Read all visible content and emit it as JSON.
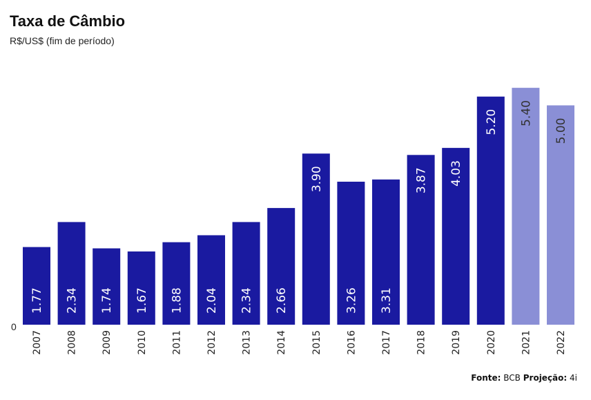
{
  "header": {
    "title": "Taxa de Câmbio",
    "subtitle": "R$/US$ (fim de período)"
  },
  "footer": {
    "source_label": "Fonte:",
    "source_value": "BCB",
    "projection_label": "Projeção:",
    "projection_value": "4i"
  },
  "colors": {
    "actual": "#1a1aa0",
    "projection": "#8a8fd6",
    "label_on_actual": "#ffffff",
    "label_on_projection": "#333333"
  },
  "chart_data": {
    "type": "bar",
    "categories": [
      "2007",
      "2008",
      "2009",
      "2010",
      "2011",
      "2012",
      "2013",
      "2014",
      "2015",
      "2016",
      "2017",
      "2018",
      "2019",
      "2020",
      "2021",
      "2022"
    ],
    "values": [
      1.77,
      2.34,
      1.74,
      1.67,
      1.88,
      2.04,
      2.34,
      2.66,
      3.9,
      3.26,
      3.31,
      3.87,
      4.03,
      5.2,
      5.4,
      5.0
    ],
    "value_labels": [
      "1.77",
      "2.34",
      "1.74",
      "1.67",
      "1.88",
      "2.04",
      "2.34",
      "2.66",
      "3.90",
      "3.26",
      "3.31",
      "3.87",
      "4.03",
      "5.20",
      "5.40",
      "5.00"
    ],
    "projection": [
      false,
      false,
      false,
      false,
      false,
      false,
      false,
      false,
      false,
      false,
      false,
      false,
      false,
      false,
      true,
      true
    ],
    "title": "Taxa de Câmbio",
    "subtitle": "R$/US$ (fim de período)",
    "ylim": [
      0,
      5.5
    ],
    "y_tick_labels": [
      "0"
    ],
    "grid": false,
    "legend": "none"
  }
}
